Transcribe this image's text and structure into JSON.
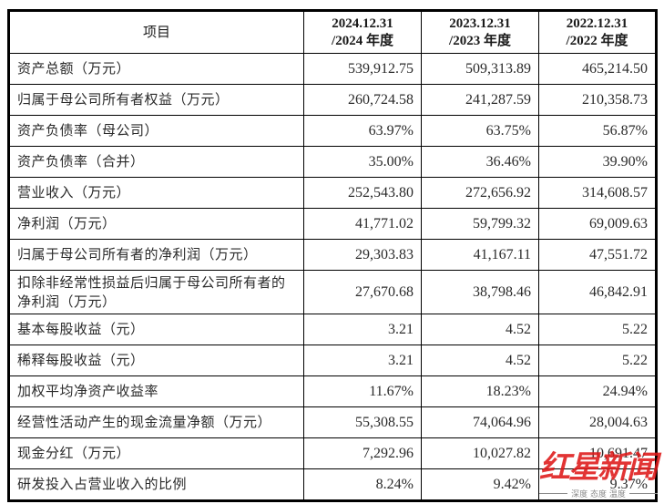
{
  "table": {
    "header": {
      "item": "项目",
      "columns": [
        {
          "line1": "2024.12.31",
          "line2": "/2024 年度"
        },
        {
          "line1": "2023.12.31",
          "line2": "/2023 年度"
        },
        {
          "line1": "2022.12.31",
          "line2": "/2022 年度"
        }
      ]
    },
    "rows": [
      {
        "label": "资产总额（万元）",
        "values": [
          "539,912.75",
          "509,313.89",
          "465,214.50"
        ]
      },
      {
        "label": "归属于母公司所有者权益（万元）",
        "values": [
          "260,724.58",
          "241,287.59",
          "210,358.73"
        ]
      },
      {
        "label": "资产负债率（母公司）",
        "values": [
          "63.97%",
          "63.75%",
          "56.87%"
        ]
      },
      {
        "label": "资产负债率（合并）",
        "values": [
          "35.00%",
          "36.46%",
          "39.90%"
        ]
      },
      {
        "label": "营业收入（万元）",
        "values": [
          "252,543.80",
          "272,656.92",
          "314,608.57"
        ]
      },
      {
        "label": "净利润（万元）",
        "values": [
          "41,771.02",
          "59,799.32",
          "69,009.63"
        ]
      },
      {
        "label": "归属于母公司所有者的净利润（万元）",
        "values": [
          "29,303.83",
          "41,167.11",
          "47,551.72"
        ]
      },
      {
        "label": "扣除非经常性损益后归属于母公司所有者的净利润（万元）",
        "values": [
          "27,670.68",
          "38,798.46",
          "46,842.91"
        ]
      },
      {
        "label": "基本每股收益（元）",
        "values": [
          "3.21",
          "4.52",
          "5.22"
        ]
      },
      {
        "label": "稀释每股收益（元）",
        "values": [
          "3.21",
          "4.52",
          "5.22"
        ]
      },
      {
        "label": "加权平均净资产收益率",
        "values": [
          "11.67%",
          "18.23%",
          "24.94%"
        ]
      },
      {
        "label": "经营性活动产生的现金流量净额（万元）",
        "values": [
          "55,308.55",
          "74,064.96",
          "28,004.63"
        ]
      },
      {
        "label": "现金分红（万元）",
        "values": [
          "7,292.96",
          "10,027.82",
          "10,691.47"
        ]
      },
      {
        "label": "研发投入占营业收入的比例",
        "values": [
          "8.24%",
          "9.42%",
          "9.37%"
        ]
      }
    ]
  },
  "watermark": {
    "title": "红星新闻",
    "tagline": "深度 态度 温度",
    "color": "#de1818"
  }
}
